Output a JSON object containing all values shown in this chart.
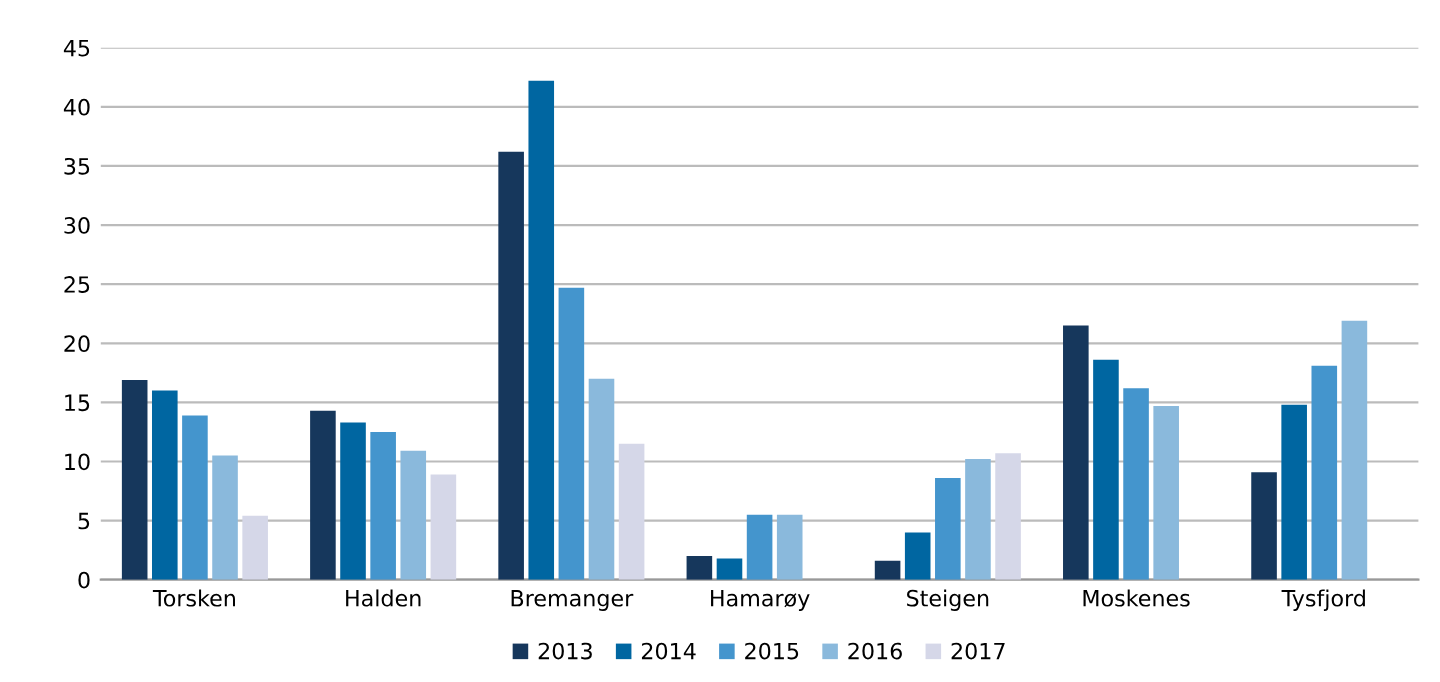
{
  "chart_data": {
    "type": "bar",
    "categories": [
      "Torsken",
      "Halden",
      "Bremanger",
      "Hamarøy",
      "Steigen",
      "Moskenes",
      "Tysfjord"
    ],
    "series": [
      {
        "name": "2013",
        "color": "#16375c",
        "values": [
          16.9,
          14.3,
          36.2,
          2.0,
          1.6,
          21.5,
          9.1
        ]
      },
      {
        "name": "2014",
        "color": "#0066a1",
        "values": [
          16.0,
          13.3,
          42.2,
          1.8,
          4.0,
          18.6,
          14.8
        ]
      },
      {
        "name": "2015",
        "color": "#4495cd",
        "values": [
          13.9,
          12.5,
          24.7,
          5.5,
          8.6,
          16.2,
          18.1
        ]
      },
      {
        "name": "2016",
        "color": "#8ab9dc",
        "values": [
          10.5,
          10.9,
          17.0,
          5.5,
          10.2,
          14.7,
          21.9
        ]
      },
      {
        "name": "2017",
        "color": "#d5d7e8",
        "values": [
          5.4,
          8.9,
          11.5,
          null,
          10.7,
          null,
          null
        ]
      }
    ],
    "ylim": [
      0,
      45
    ],
    "yticks": [
      0,
      5,
      10,
      15,
      20,
      25,
      30,
      35,
      40,
      45
    ],
    "grid": "y",
    "legend": "bottom"
  }
}
